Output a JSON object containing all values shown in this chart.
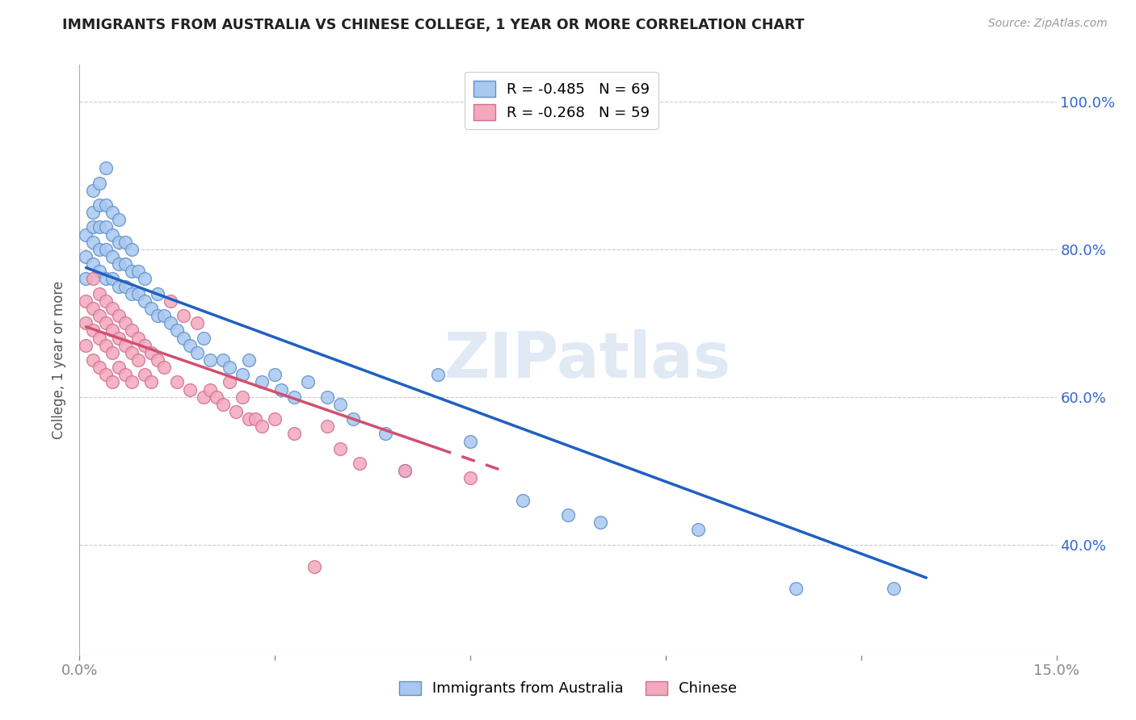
{
  "title": "IMMIGRANTS FROM AUSTRALIA VS CHINESE COLLEGE, 1 YEAR OR MORE CORRELATION CHART",
  "source": "Source: ZipAtlas.com",
  "ylabel": "College, 1 year or more",
  "xlim": [
    0.0,
    0.15
  ],
  "ylim": [
    0.25,
    1.05
  ],
  "xtick_positions": [
    0.0,
    0.03,
    0.06,
    0.09,
    0.12,
    0.15
  ],
  "xtick_labels": [
    "0.0%",
    "",
    "",
    "",
    "",
    "15.0%"
  ],
  "ytick_positions": [
    0.4,
    0.6,
    0.8,
    1.0
  ],
  "ytick_labels": [
    "40.0%",
    "60.0%",
    "80.0%",
    "100.0%"
  ],
  "blue_label": "Immigrants from Australia",
  "pink_label": "Chinese",
  "blue_R": -0.485,
  "blue_N": 69,
  "pink_R": -0.268,
  "pink_N": 59,
  "blue_color": "#A8C8F0",
  "pink_color": "#F4A8BC",
  "blue_edge": "#6090C8",
  "pink_edge": "#D07090",
  "blue_line_color": "#2060C0",
  "pink_line_color": "#D05070",
  "background": "#FFFFFF",
  "grid_color": "#CCCCCC",
  "title_color": "#222222",
  "source_color": "#999999",
  "watermark": "ZIPatlas",
  "blue_line_x0": 0.001,
  "blue_line_x1": 0.13,
  "blue_line_y0": 0.775,
  "blue_line_y1": 0.355,
  "pink_line_x0": 0.001,
  "pink_line_x1": 0.065,
  "pink_line_solid_x1": 0.055,
  "pink_line_y0": 0.695,
  "pink_line_y1": 0.5,
  "blue_x": [
    0.001,
    0.001,
    0.001,
    0.002,
    0.002,
    0.002,
    0.002,
    0.002,
    0.003,
    0.003,
    0.003,
    0.003,
    0.003,
    0.004,
    0.004,
    0.004,
    0.004,
    0.004,
    0.005,
    0.005,
    0.005,
    0.005,
    0.006,
    0.006,
    0.006,
    0.006,
    0.007,
    0.007,
    0.007,
    0.008,
    0.008,
    0.008,
    0.009,
    0.009,
    0.01,
    0.01,
    0.011,
    0.012,
    0.012,
    0.013,
    0.014,
    0.015,
    0.016,
    0.017,
    0.018,
    0.019,
    0.02,
    0.022,
    0.023,
    0.025,
    0.026,
    0.028,
    0.03,
    0.031,
    0.033,
    0.035,
    0.038,
    0.04,
    0.042,
    0.047,
    0.05,
    0.055,
    0.06,
    0.068,
    0.075,
    0.08,
    0.095,
    0.11,
    0.125
  ],
  "blue_y": [
    0.76,
    0.79,
    0.82,
    0.78,
    0.81,
    0.83,
    0.85,
    0.88,
    0.77,
    0.8,
    0.83,
    0.86,
    0.89,
    0.76,
    0.8,
    0.83,
    0.86,
    0.91,
    0.76,
    0.79,
    0.82,
    0.85,
    0.75,
    0.78,
    0.81,
    0.84,
    0.75,
    0.78,
    0.81,
    0.74,
    0.77,
    0.8,
    0.74,
    0.77,
    0.73,
    0.76,
    0.72,
    0.71,
    0.74,
    0.71,
    0.7,
    0.69,
    0.68,
    0.67,
    0.66,
    0.68,
    0.65,
    0.65,
    0.64,
    0.63,
    0.65,
    0.62,
    0.63,
    0.61,
    0.6,
    0.62,
    0.6,
    0.59,
    0.57,
    0.55,
    0.5,
    0.63,
    0.54,
    0.46,
    0.44,
    0.43,
    0.42,
    0.34,
    0.34
  ],
  "pink_x": [
    0.001,
    0.001,
    0.001,
    0.002,
    0.002,
    0.002,
    0.002,
    0.003,
    0.003,
    0.003,
    0.003,
    0.004,
    0.004,
    0.004,
    0.004,
    0.005,
    0.005,
    0.005,
    0.005,
    0.006,
    0.006,
    0.006,
    0.007,
    0.007,
    0.007,
    0.008,
    0.008,
    0.008,
    0.009,
    0.009,
    0.01,
    0.01,
    0.011,
    0.011,
    0.012,
    0.013,
    0.014,
    0.015,
    0.016,
    0.017,
    0.018,
    0.019,
    0.02,
    0.021,
    0.022,
    0.023,
    0.024,
    0.025,
    0.026,
    0.027,
    0.028,
    0.03,
    0.033,
    0.036,
    0.038,
    0.04,
    0.043,
    0.05,
    0.06
  ],
  "pink_y": [
    0.73,
    0.7,
    0.67,
    0.76,
    0.72,
    0.69,
    0.65,
    0.74,
    0.71,
    0.68,
    0.64,
    0.73,
    0.7,
    0.67,
    0.63,
    0.72,
    0.69,
    0.66,
    0.62,
    0.71,
    0.68,
    0.64,
    0.7,
    0.67,
    0.63,
    0.69,
    0.66,
    0.62,
    0.68,
    0.65,
    0.67,
    0.63,
    0.66,
    0.62,
    0.65,
    0.64,
    0.73,
    0.62,
    0.71,
    0.61,
    0.7,
    0.6,
    0.61,
    0.6,
    0.59,
    0.62,
    0.58,
    0.6,
    0.57,
    0.57,
    0.56,
    0.57,
    0.55,
    0.37,
    0.56,
    0.53,
    0.51,
    0.5,
    0.49
  ]
}
